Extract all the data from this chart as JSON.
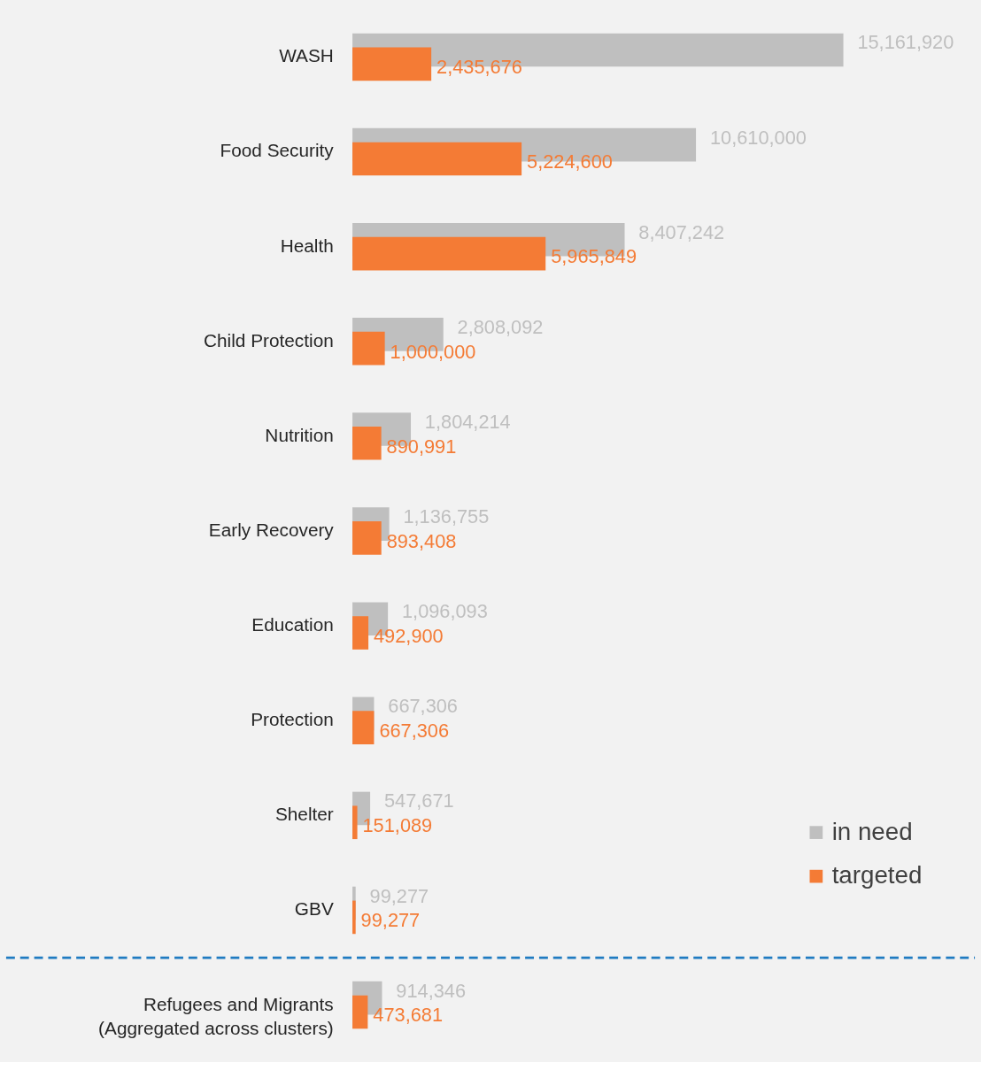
{
  "chart_data": {
    "type": "bar",
    "orientation": "horizontal",
    "legend": "bottom right",
    "grid": false,
    "categories": [
      "WASH",
      "Food Security",
      "Health",
      "Child Protection",
      "Nutrition",
      "Early Recovery",
      "Education",
      "Protection",
      "Shelter",
      "GBV",
      "Refugees and Migrants\n(Aggregated across clusters)"
    ],
    "series": [
      {
        "name": "in need",
        "color": "#bfbfbf",
        "values": [
          15161920,
          10610000,
          8407242,
          2808092,
          1804214,
          1136755,
          1096093,
          667306,
          547671,
          99277,
          914346
        ],
        "value_labels": [
          "15,161,920",
          "10,610,000",
          "8,407,242",
          "2,808,092",
          "1,804,214",
          "1,136,755",
          "1,096,093",
          "667,306",
          "547,671",
          "99,277",
          "914,346"
        ]
      },
      {
        "name": "targeted",
        "color": "#f47b35",
        "values": [
          2435676,
          5224600,
          5965849,
          1000000,
          890991,
          893408,
          492900,
          667306,
          151089,
          99277,
          473681
        ],
        "value_labels": [
          "2,435,676",
          "5,224,600",
          "5,965,849",
          "1,000,000",
          "890,991",
          "893,408",
          "492,900",
          "667,306",
          "151,089",
          "99,277",
          "473,681"
        ]
      }
    ],
    "ref_lines": [
      {
        "axis": "y",
        "value": "Refugees and Migrants\n(Aggregated across clusters)",
        "color": "#1f7bc1",
        "line_style": "dashed"
      }
    ]
  }
}
